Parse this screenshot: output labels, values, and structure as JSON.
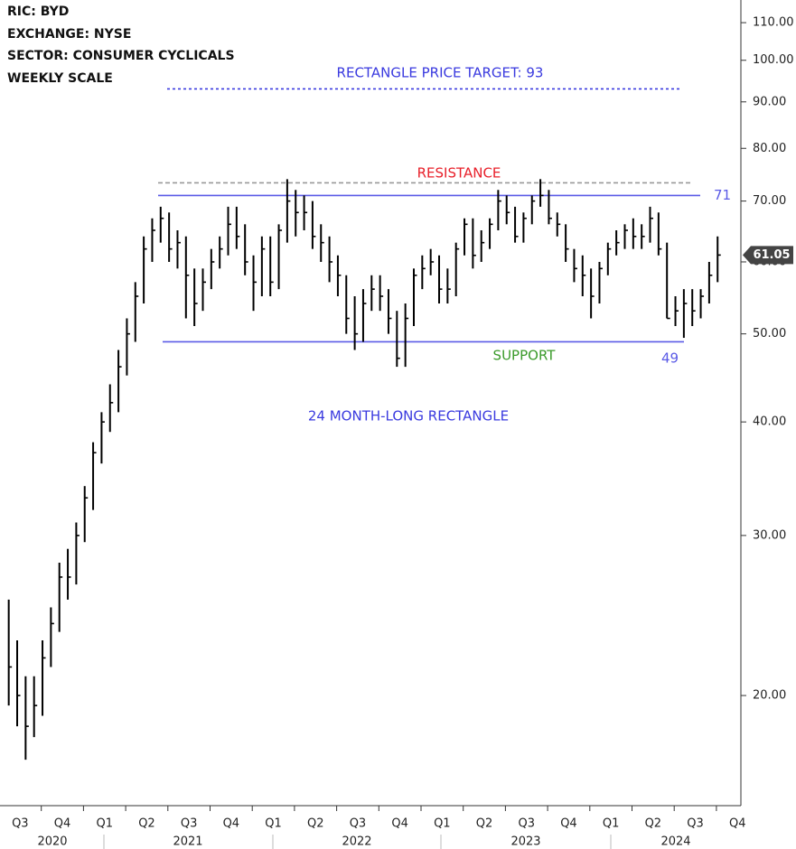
{
  "chart_data": {
    "type": "hlc",
    "header": [
      "RIC:  BYD",
      "EXCHANGE:  NYSE",
      "SECTOR:  CONSUMER CYCLICALS",
      "WEEKLY SCALE"
    ],
    "log_scale": true,
    "ylim": [
      15.2,
      116.5
    ],
    "yticks": [
      {
        "value": 20,
        "label": "20.00"
      },
      {
        "value": 30,
        "label": "30.00"
      },
      {
        "value": 40,
        "label": "40.00"
      },
      {
        "value": 50,
        "label": "50.00"
      },
      {
        "value": 60,
        "label": "60.00"
      },
      {
        "value": 70,
        "label": "70.00"
      },
      {
        "value": 80,
        "label": "80.00"
      },
      {
        "value": 90,
        "label": "90.00"
      },
      {
        "value": 100,
        "label": "100.00"
      },
      {
        "value": 110,
        "label": "110.00"
      }
    ],
    "quarters": [
      "Q3",
      "Q4",
      "Q1",
      "Q2",
      "Q3",
      "Q4",
      "Q1",
      "Q2",
      "Q3",
      "Q4",
      "Q1",
      "Q2",
      "Q3",
      "Q4",
      "Q1",
      "Q2",
      "Q3",
      "Q4"
    ],
    "years": [
      "2020",
      "2021",
      "2022",
      "2023",
      "2024"
    ],
    "bars_per_quarter": 5,
    "color": "#000000",
    "high": [
      25.5,
      23,
      21,
      21,
      23,
      25,
      28,
      29,
      31,
      34,
      38,
      41,
      44,
      48,
      52,
      57,
      64,
      67,
      69,
      68,
      65,
      64,
      59,
      59,
      62,
      64,
      69,
      69,
      66,
      61,
      64,
      64,
      66,
      74,
      72,
      71,
      70,
      66,
      64,
      61,
      58,
      55,
      56,
      58,
      58,
      56,
      53,
      54,
      59,
      61,
      62,
      61,
      59,
      63,
      67,
      67,
      65,
      67,
      72,
      71,
      69,
      68,
      71,
      74,
      72,
      68,
      66,
      62,
      61,
      59,
      60,
      63,
      65,
      66,
      67,
      66,
      69,
      68,
      63,
      55,
      56,
      56,
      56,
      60,
      64
    ],
    "low": [
      19.5,
      18.5,
      17,
      18,
      19,
      21.5,
      23.5,
      25.5,
      26.5,
      29.5,
      32,
      36,
      39,
      41,
      45,
      49,
      54,
      60,
      63,
      60,
      59,
      52,
      51,
      53,
      56,
      59,
      61,
      62,
      58,
      53,
      55,
      55,
      56,
      63,
      64,
      65,
      62,
      60,
      57,
      55,
      50,
      48,
      49,
      53,
      53,
      50,
      46,
      46,
      51,
      56,
      58,
      54,
      54,
      55,
      61,
      59,
      60,
      62,
      65,
      66,
      63,
      63,
      66,
      69,
      66,
      64,
      60,
      57,
      55,
      52,
      54,
      58,
      61,
      62,
      62,
      62,
      63,
      61,
      52,
      51,
      49.5,
      51,
      52,
      54,
      57
    ],
    "close": [
      21.5,
      20,
      18.5,
      19.5,
      22,
      24,
      27,
      27,
      30,
      33,
      37,
      40,
      42,
      46,
      50,
      55,
      62,
      65,
      67,
      62,
      63,
      58,
      54,
      57,
      60,
      62,
      66,
      64,
      60,
      57,
      62,
      57,
      65,
      70,
      68,
      68,
      64,
      63,
      60,
      58,
      52,
      50,
      54,
      56,
      55,
      52,
      47,
      52,
      58,
      59,
      60,
      56,
      56,
      62,
      66,
      61,
      63,
      66,
      70,
      68,
      64,
      67,
      70,
      71,
      67,
      66,
      62,
      59,
      58,
      55,
      59,
      62,
      63,
      65,
      64,
      64,
      67,
      62,
      52,
      53,
      54,
      53,
      55,
      58,
      61.05
    ],
    "levels": [
      {
        "value": 93,
        "style": "dotted",
        "color": "#3a3adf"
      },
      {
        "value": 73.3,
        "style": "dashed",
        "color": "#999999"
      },
      {
        "value": 71,
        "style": "solid",
        "color": "#5a5ae6"
      },
      {
        "value": 49,
        "style": "solid",
        "color": "#5a5ae6"
      }
    ],
    "annotations": [
      {
        "text": "RECTANGLE PRICE TARGET: 93",
        "color": "#3a3adf"
      },
      {
        "text": "RESISTANCE",
        "color": "#e8202a"
      },
      {
        "text": "SUPPORT",
        "color": "#3a9a2a"
      },
      {
        "text": "24 MONTH-LONG RECTANGLE",
        "color": "#3a3adf"
      }
    ]
  }
}
